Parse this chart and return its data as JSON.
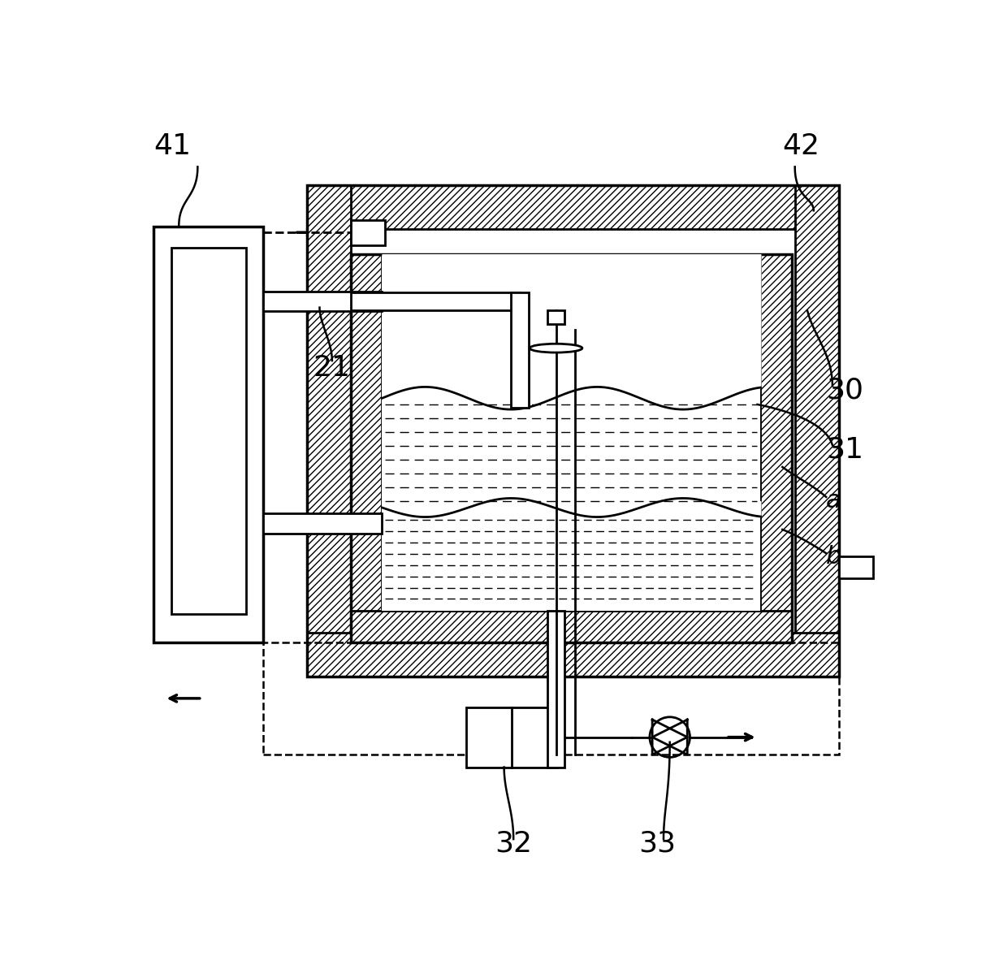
{
  "bg_color": "#ffffff",
  "lw": 2.0,
  "lw_thick": 2.5,
  "label_41": "41",
  "label_42": "42",
  "label_21": "21",
  "label_30": "30",
  "label_31": "31",
  "label_a": "a",
  "label_b": "b",
  "label_32": "32",
  "label_33": "33",
  "fig_width": 12.14,
  "fig_height": 11.98
}
